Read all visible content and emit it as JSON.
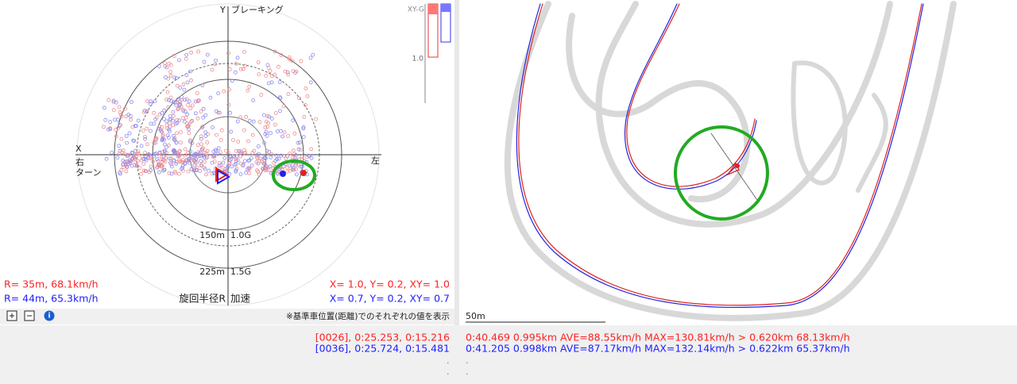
{
  "left_panel": {
    "y_axis": "Y",
    "y_caption": "ブレーキング",
    "x_axis": "X",
    "right_side": "右",
    "turn": "ターン",
    "left_side": "左",
    "ring_150": "150m",
    "ring_10g": "1.0G",
    "ring_225": "225m",
    "ring_15g": "1.5G",
    "radius_caption": "旋回半径R",
    "accel_caption": "加速",
    "bar_title": "XY-G",
    "bar_tick": "1.0",
    "red_radius": "R=  35m,  68.1km/h",
    "blue_radius": "R=  44m,  65.3km/h",
    "red_g": "X=  1.0,  Y=  0.2,  XY= 1.0",
    "blue_g": "X=  0.7,  Y=  0.2,  XY= 0.7",
    "note": "※基準車位置(距離)でのそれぞれの値を表示"
  },
  "bottom": {
    "red_lap": "[0026], 0:25.253, 0:15.216",
    "blue_lap": "[0036], 0:25.724, 0:15.481",
    "dot1": ".",
    "dot2": ".",
    "red_stats": "0:40.469 0.995km AVE=88.55km/h MAX=130.81km/h > 0.620km 68.13km/h",
    "blue_stats": "0:41.205 0.998km AVE=87.17km/h MAX=132.14km/h > 0.622km 65.37km/h",
    "dot3": ".",
    "dot4": "."
  },
  "map": {
    "scale": "50m"
  }
}
